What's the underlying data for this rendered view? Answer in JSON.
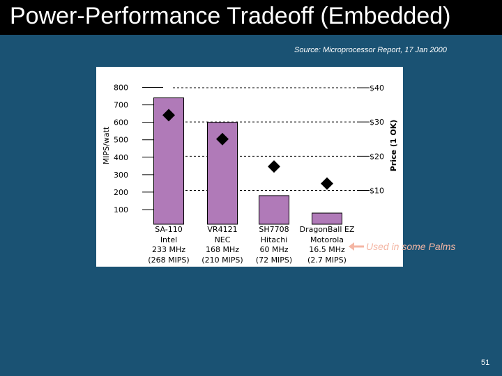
{
  "slide": {
    "title": "Power-Performance Tradeoff (Embedded)",
    "source": "Source: Microprocessor Report, 17 Jan 2000",
    "annotation": "Used in some Palms",
    "slide_number": "51"
  },
  "colors": {
    "background": "#1a5273",
    "title_bar": "#000000",
    "bar": "#b07ab8",
    "marker": "#000000",
    "annotation": "#f4b6a4"
  },
  "chart_data": {
    "type": "bar",
    "title": "",
    "categories": [
      [
        "SA-110",
        "Intel",
        "233 MHz",
        "(268 MIPS)"
      ],
      [
        "VR4121",
        "NEC",
        "168 MHz",
        "(210 MIPS)"
      ],
      [
        "SH7708",
        "Hitachi",
        "60 MHz",
        "(72 MIPS)"
      ],
      [
        "DragonBall EZ",
        "Motorola",
        "16.5 MHz",
        "(2.7 MIPS)"
      ]
    ],
    "series": [
      {
        "name": "MIPS/watt",
        "type": "bar",
        "axis": "left",
        "values": [
          740,
          600,
          180,
          80
        ]
      },
      {
        "name": "Price",
        "type": "marker",
        "axis": "right",
        "values": [
          32,
          25,
          17,
          12
        ]
      }
    ],
    "ylabel": "MIPS/watt",
    "ylim": [
      100,
      800
    ],
    "yticks": [
      100,
      200,
      300,
      400,
      500,
      600,
      700,
      800
    ],
    "ylabel_right": "Price (1 OK)",
    "ylim_right": [
      10,
      40
    ],
    "yticks_right": [
      10,
      20,
      30,
      40
    ],
    "yticks_right_labels": [
      "$10",
      "$20",
      "$30",
      "$40"
    ],
    "dashed_price_lines": true,
    "legend": "none"
  }
}
